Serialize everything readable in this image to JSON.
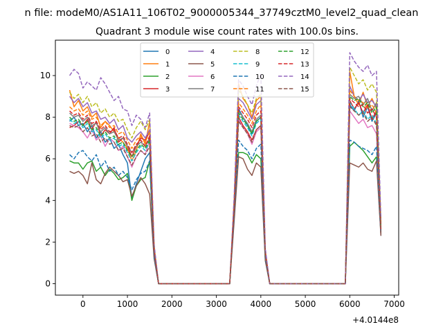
{
  "chart_data": {
    "type": "line",
    "suptitle": "n file: modeM0/AS1A11_106T02_9000005344_37749cztM0_level2_quad_clean",
    "title": "Quadrant 3 module wise count rates with 100.0s bins.",
    "xlabel": "",
    "ylabel": "",
    "x_offset_label": "+4.0144e8",
    "xlim": [
      -620,
      7100
    ],
    "ylim": [
      -0.55,
      11.7
    ],
    "xticks": [
      0,
      1000,
      2000,
      3000,
      4000,
      5000,
      6000,
      7000
    ],
    "xtick_labels": [
      "0",
      "1000",
      "2000",
      "3000",
      "4000",
      "5000",
      "6000",
      "7000"
    ],
    "yticks": [
      0,
      2,
      4,
      6,
      8,
      10
    ],
    "ytick_labels": [
      "0",
      "2",
      "4",
      "6",
      "8",
      "10"
    ],
    "grid": false,
    "legend_position": "top-center",
    "legend_columns": 4,
    "x": [
      -300,
      -200,
      -100,
      0,
      100,
      200,
      300,
      400,
      500,
      600,
      700,
      800,
      900,
      1000,
      1100,
      1200,
      1300,
      1400,
      1500,
      1600,
      1700,
      1800,
      1900,
      2000,
      2100,
      2200,
      2300,
      2400,
      2500,
      2600,
      2700,
      2800,
      2900,
      3000,
      3100,
      3200,
      3300,
      3400,
      3500,
      3600,
      3700,
      3800,
      3900,
      4000,
      4100,
      4200,
      4300,
      4400,
      4500,
      4600,
      4700,
      4800,
      4900,
      5000,
      5100,
      5200,
      5300,
      5400,
      5500,
      5600,
      5700,
      5800,
      5900,
      6000,
      6100,
      6200,
      6300,
      6400,
      6500,
      6600,
      6700
    ],
    "series": [
      {
        "name": "0",
        "color": "#1f77b4",
        "dash": "solid",
        "values": [
          7.8,
          8.0,
          7.6,
          7.7,
          7.3,
          7.6,
          7.0,
          7.3,
          6.8,
          7.0,
          6.5,
          6.7,
          6.2,
          5.8,
          4.1,
          4.8,
          5.4,
          6.0,
          6.3,
          1.5,
          0,
          0,
          0,
          0,
          0,
          0,
          0,
          0,
          0,
          0,
          0,
          0,
          0,
          0,
          0,
          0,
          0,
          3.5,
          8.4,
          8.0,
          7.6,
          7.2,
          7.8,
          8.0,
          1.4,
          0,
          0,
          0,
          0,
          0,
          0,
          0,
          0,
          0,
          0,
          0,
          0,
          0,
          0,
          0,
          0,
          0,
          0,
          8.6,
          8.3,
          8.8,
          8.0,
          8.5,
          7.8,
          8.2,
          2.3
        ]
      },
      {
        "name": "1",
        "color": "#ff7f0e",
        "dash": "solid",
        "values": [
          9.3,
          8.5,
          8.8,
          8.3,
          8.5,
          8.0,
          8.2,
          7.5,
          7.8,
          7.6,
          7.3,
          7.0,
          6.8,
          6.5,
          5.9,
          6.4,
          7.2,
          6.7,
          7.8,
          1.8,
          0,
          0,
          0,
          0,
          0,
          0,
          0,
          0,
          0,
          0,
          0,
          0,
          0,
          0,
          0,
          0,
          0,
          4.0,
          9.6,
          8.9,
          8.6,
          8.0,
          8.8,
          9.0,
          1.6,
          0,
          0,
          0,
          0,
          0,
          0,
          0,
          0,
          0,
          0,
          0,
          0,
          0,
          0,
          0,
          0,
          0,
          0,
          10.2,
          9.0,
          8.6,
          9.2,
          8.5,
          8.9,
          8.4,
          2.8
        ]
      },
      {
        "name": "2",
        "color": "#2ca02c",
        "dash": "solid",
        "values": [
          5.9,
          5.8,
          5.8,
          5.5,
          5.8,
          5.9,
          5.4,
          5.6,
          5.2,
          5.5,
          5.3,
          5.0,
          5.1,
          5.3,
          4.0,
          4.7,
          5.0,
          5.1,
          5.9,
          1.3,
          0,
          0,
          0,
          0,
          0,
          0,
          0,
          0,
          0,
          0,
          0,
          0,
          0,
          0,
          0,
          0,
          0,
          3.2,
          6.3,
          6.3,
          6.2,
          5.8,
          6.2,
          6.0,
          1.2,
          0,
          0,
          0,
          0,
          0,
          0,
          0,
          0,
          0,
          0,
          0,
          0,
          0,
          0,
          0,
          0,
          0,
          0,
          6.6,
          6.8,
          6.6,
          6.4,
          6.1,
          5.8,
          6.1,
          2.4
        ]
      },
      {
        "name": "3",
        "color": "#d62728",
        "dash": "solid",
        "values": [
          7.5,
          7.6,
          7.8,
          7.6,
          7.9,
          7.4,
          7.8,
          7.1,
          7.4,
          7.2,
          7.5,
          6.8,
          7.0,
          6.6,
          6.1,
          6.6,
          7.0,
          6.9,
          7.3,
          1.6,
          0,
          0,
          0,
          0,
          0,
          0,
          0,
          0,
          0,
          0,
          0,
          0,
          0,
          0,
          0,
          0,
          0,
          3.6,
          8.0,
          7.6,
          7.3,
          6.9,
          7.4,
          7.6,
          1.4,
          0,
          0,
          0,
          0,
          0,
          0,
          0,
          0,
          0,
          0,
          0,
          0,
          0,
          0,
          0,
          0,
          0,
          0,
          8.8,
          8.4,
          8.7,
          8.2,
          8.6,
          7.9,
          8.3,
          2.5
        ]
      },
      {
        "name": "4",
        "color": "#9467bd",
        "dash": "solid",
        "values": [
          9.0,
          8.7,
          8.9,
          8.5,
          8.7,
          8.2,
          8.3,
          7.9,
          8.0,
          7.7,
          7.9,
          7.4,
          7.6,
          7.0,
          6.8,
          7.1,
          7.3,
          7.0,
          7.4,
          1.7,
          0,
          0,
          0,
          0,
          0,
          0,
          0,
          0,
          0,
          0,
          0,
          0,
          0,
          0,
          0,
          0,
          0,
          3.9,
          8.9,
          8.7,
          8.3,
          7.9,
          8.6,
          8.8,
          1.5,
          0,
          0,
          0,
          0,
          0,
          0,
          0,
          0,
          0,
          0,
          0,
          0,
          0,
          0,
          0,
          0,
          0,
          0,
          9.5,
          9.0,
          8.8,
          9.1,
          8.7,
          8.8,
          8.5,
          2.8
        ]
      },
      {
        "name": "5",
        "color": "#8c564b",
        "dash": "solid",
        "values": [
          5.4,
          5.3,
          5.4,
          5.2,
          4.8,
          5.8,
          5.0,
          4.8,
          5.3,
          5.6,
          5.4,
          5.2,
          4.9,
          5.0,
          4.2,
          4.7,
          5.1,
          4.8,
          4.3,
          1.2,
          0,
          0,
          0,
          0,
          0,
          0,
          0,
          0,
          0,
          0,
          0,
          0,
          0,
          0,
          0,
          0,
          0,
          3.0,
          6.1,
          6.0,
          5.5,
          5.2,
          5.8,
          5.6,
          1.1,
          0,
          0,
          0,
          0,
          0,
          0,
          0,
          0,
          0,
          0,
          0,
          0,
          0,
          0,
          0,
          0,
          0,
          0,
          5.8,
          5.7,
          5.6,
          5.8,
          5.5,
          5.4,
          5.9,
          2.3
        ]
      },
      {
        "name": "6",
        "color": "#e377c2",
        "dash": "solid",
        "values": [
          7.7,
          7.6,
          7.5,
          7.3,
          7.0,
          7.4,
          6.9,
          7.1,
          6.6,
          7.0,
          6.8,
          6.4,
          6.6,
          6.1,
          5.6,
          6.1,
          6.4,
          6.2,
          6.9,
          1.5,
          0,
          0,
          0,
          0,
          0,
          0,
          0,
          0,
          0,
          0,
          0,
          0,
          0,
          0,
          0,
          0,
          0,
          3.5,
          7.9,
          7.5,
          7.2,
          6.7,
          7.3,
          7.5,
          1.3,
          0,
          0,
          0,
          0,
          0,
          0,
          0,
          0,
          0,
          0,
          0,
          0,
          0,
          0,
          0,
          0,
          0,
          0,
          8.3,
          8.0,
          7.7,
          7.9,
          7.5,
          7.6,
          7.2,
          2.4
        ]
      },
      {
        "name": "7",
        "color": "#7f7f7f",
        "dash": "solid",
        "values": [
          8.2,
          8.0,
          8.1,
          7.8,
          8.0,
          7.6,
          7.7,
          7.3,
          7.5,
          7.2,
          7.3,
          6.9,
          7.0,
          6.6,
          6.3,
          6.6,
          6.8,
          6.6,
          7.0,
          1.6,
          0,
          0,
          0,
          0,
          0,
          0,
          0,
          0,
          0,
          0,
          0,
          0,
          0,
          0,
          0,
          0,
          0,
          3.7,
          8.3,
          8.0,
          7.7,
          7.3,
          7.9,
          8.1,
          1.4,
          0,
          0,
          0,
          0,
          0,
          0,
          0,
          0,
          0,
          0,
          0,
          0,
          0,
          0,
          0,
          0,
          0,
          0,
          9.1,
          8.9,
          9.0,
          8.6,
          8.9,
          8.3,
          8.7,
          2.6
        ]
      },
      {
        "name": "8",
        "color": "#bcbd22",
        "dash": "dashed",
        "values": [
          9.2,
          8.9,
          9.1,
          8.7,
          9.0,
          8.5,
          8.7,
          8.2,
          8.4,
          8.0,
          8.2,
          7.8,
          7.9,
          7.4,
          7.0,
          7.5,
          7.8,
          7.4,
          7.9,
          1.8,
          0,
          0,
          0,
          0,
          0,
          0,
          0,
          0,
          0,
          0,
          0,
          0,
          0,
          0,
          0,
          0,
          0,
          4.0,
          9.3,
          9.0,
          8.6,
          8.2,
          8.9,
          9.1,
          1.6,
          0,
          0,
          0,
          0,
          0,
          0,
          0,
          0,
          0,
          0,
          0,
          0,
          0,
          0,
          0,
          0,
          0,
          0,
          10.4,
          10.0,
          9.6,
          9.8,
          9.3,
          9.6,
          9.2,
          3.0
        ]
      },
      {
        "name": "9",
        "color": "#17becf",
        "dash": "dashed",
        "values": [
          7.9,
          7.7,
          7.8,
          7.5,
          7.7,
          7.3,
          7.4,
          7.0,
          7.2,
          6.9,
          7.0,
          6.6,
          6.7,
          6.3,
          5.9,
          6.3,
          6.6,
          6.4,
          6.8,
          1.5,
          0,
          0,
          0,
          0,
          0,
          0,
          0,
          0,
          0,
          0,
          0,
          0,
          0,
          0,
          0,
          0,
          0,
          3.6,
          8.1,
          7.8,
          7.5,
          7.1,
          7.7,
          7.9,
          1.4,
          0,
          0,
          0,
          0,
          0,
          0,
          0,
          0,
          0,
          0,
          0,
          0,
          0,
          0,
          0,
          0,
          0,
          0,
          8.7,
          8.4,
          8.1,
          8.3,
          7.9,
          8.1,
          7.7,
          2.5
        ]
      },
      {
        "name": "10",
        "color": "#1f77b4",
        "dash": "dashed",
        "values": [
          6.2,
          6.0,
          6.3,
          6.4,
          6.1,
          5.9,
          6.2,
          5.6,
          5.9,
          5.4,
          5.6,
          5.2,
          5.4,
          5.1,
          4.5,
          5.0,
          5.3,
          5.4,
          5.9,
          1.3,
          0,
          0,
          0,
          0,
          0,
          0,
          0,
          0,
          0,
          0,
          0,
          0,
          0,
          0,
          0,
          0,
          0,
          3.3,
          6.9,
          6.6,
          6.4,
          6.0,
          6.5,
          6.7,
          1.2,
          0,
          0,
          0,
          0,
          0,
          0,
          0,
          0,
          0,
          0,
          0,
          0,
          0,
          0,
          0,
          0,
          0,
          0,
          6.9,
          6.8,
          6.6,
          6.5,
          6.4,
          6.2,
          6.6,
          2.4
        ]
      },
      {
        "name": "11",
        "color": "#ff7f0e",
        "dash": "dashed",
        "values": [
          8.5,
          8.3,
          8.4,
          8.1,
          8.3,
          7.9,
          8.0,
          7.6,
          7.8,
          7.5,
          7.6,
          7.2,
          7.3,
          6.9,
          6.5,
          6.9,
          7.1,
          6.8,
          7.3,
          1.7,
          0,
          0,
          0,
          0,
          0,
          0,
          0,
          0,
          0,
          0,
          0,
          0,
          0,
          0,
          0,
          0,
          0,
          3.8,
          8.7,
          8.4,
          8.1,
          7.7,
          8.3,
          8.6,
          1.5,
          0,
          0,
          0,
          0,
          0,
          0,
          0,
          0,
          0,
          0,
          0,
          0,
          0,
          0,
          0,
          0,
          0,
          0,
          9.3,
          9.0,
          8.8,
          8.7,
          8.4,
          8.6,
          8.2,
          2.7
        ]
      },
      {
        "name": "12",
        "color": "#2ca02c",
        "dash": "dashed",
        "values": [
          8.0,
          7.8,
          7.9,
          7.6,
          7.8,
          7.4,
          7.5,
          7.1,
          7.3,
          7.0,
          7.1,
          6.7,
          6.8,
          6.4,
          6.1,
          6.4,
          6.7,
          6.5,
          6.9,
          1.6,
          0,
          0,
          0,
          0,
          0,
          0,
          0,
          0,
          0,
          0,
          0,
          0,
          0,
          0,
          0,
          0,
          0,
          3.6,
          8.2,
          7.9,
          7.6,
          7.2,
          7.8,
          8.0,
          1.4,
          0,
          0,
          0,
          0,
          0,
          0,
          0,
          0,
          0,
          0,
          0,
          0,
          0,
          0,
          0,
          0,
          0,
          0,
          9.0,
          8.8,
          8.9,
          8.5,
          8.7,
          8.2,
          8.5,
          2.6
        ]
      },
      {
        "name": "13",
        "color": "#d62728",
        "dash": "dashed",
        "values": [
          8.3,
          8.1,
          8.2,
          7.9,
          8.1,
          7.7,
          7.8,
          7.4,
          7.6,
          7.3,
          7.4,
          7.0,
          7.1,
          6.7,
          6.3,
          6.7,
          6.9,
          6.6,
          7.1,
          1.6,
          0,
          0,
          0,
          0,
          0,
          0,
          0,
          0,
          0,
          0,
          0,
          0,
          0,
          0,
          0,
          0,
          0,
          3.7,
          8.5,
          8.2,
          7.9,
          7.5,
          8.1,
          8.3,
          1.5,
          0,
          0,
          0,
          0,
          0,
          0,
          0,
          0,
          0,
          0,
          0,
          0,
          0,
          0,
          0,
          0,
          0,
          0,
          8.9,
          8.7,
          8.5,
          8.6,
          8.2,
          8.4,
          8.0,
          2.6
        ]
      },
      {
        "name": "14",
        "color": "#9467bd",
        "dash": "dashed",
        "values": [
          10.0,
          10.3,
          10.1,
          9.4,
          9.7,
          9.5,
          9.3,
          9.9,
          9.6,
          9.2,
          8.8,
          9.0,
          8.4,
          8.3,
          7.6,
          8.1,
          7.9,
          7.5,
          8.2,
          1.9,
          0,
          0,
          0,
          0,
          0,
          0,
          0,
          0,
          0,
          0,
          0,
          0,
          0,
          0,
          0,
          0,
          0,
          4.2,
          9.8,
          9.5,
          9.0,
          8.6,
          9.5,
          10.1,
          1.7,
          0,
          0,
          0,
          0,
          0,
          0,
          0,
          0,
          0,
          0,
          0,
          0,
          0,
          0,
          0,
          0,
          0,
          0,
          11.1,
          10.7,
          10.4,
          10.2,
          10.5,
          10.0,
          10.2,
          3.1
        ]
      },
      {
        "name": "15",
        "color": "#8c564b",
        "dash": "dashed",
        "values": [
          7.6,
          7.5,
          7.6,
          7.3,
          7.5,
          7.1,
          7.2,
          6.8,
          7.0,
          6.7,
          6.8,
          6.4,
          6.5,
          6.1,
          5.7,
          6.1,
          6.4,
          6.2,
          6.6,
          1.5,
          0,
          0,
          0,
          0,
          0,
          0,
          0,
          0,
          0,
          0,
          0,
          0,
          0,
          0,
          0,
          0,
          0,
          3.5,
          7.8,
          7.5,
          7.2,
          6.8,
          7.4,
          7.6,
          1.3,
          0,
          0,
          0,
          0,
          0,
          0,
          0,
          0,
          0,
          0,
          0,
          0,
          0,
          0,
          0,
          0,
          0,
          0,
          8.5,
          8.3,
          8.1,
          8.2,
          7.8,
          8.0,
          7.6,
          2.4
        ]
      }
    ]
  }
}
